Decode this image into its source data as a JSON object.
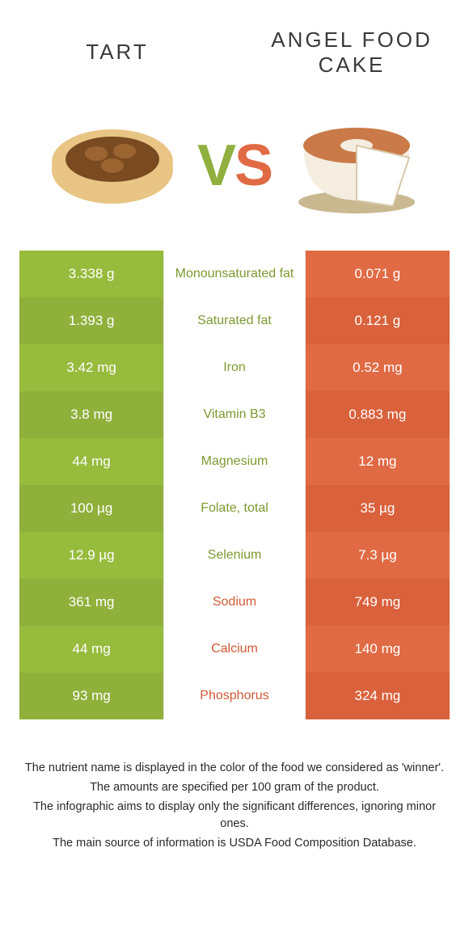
{
  "header": {
    "left_title": "Tart",
    "right_title": "Angel food cake"
  },
  "vs": {
    "v": "V",
    "s": "S"
  },
  "colors": {
    "green_a": "#97bb3d",
    "green_b": "#8fb03a",
    "orange_a": "#e06a44",
    "orange_b": "#d9613c",
    "mid_green_text": "#7d9a30",
    "mid_orange_text": "#d15a36"
  },
  "rows": [
    {
      "label": "Monounsaturated fat",
      "left": "3.338 g",
      "right": "0.071 g",
      "winner": "left"
    },
    {
      "label": "Saturated fat",
      "left": "1.393 g",
      "right": "0.121 g",
      "winner": "left"
    },
    {
      "label": "Iron",
      "left": "3.42 mg",
      "right": "0.52 mg",
      "winner": "left"
    },
    {
      "label": "Vitamin B3",
      "left": "3.8 mg",
      "right": "0.883 mg",
      "winner": "left"
    },
    {
      "label": "Magnesium",
      "left": "44 mg",
      "right": "12 mg",
      "winner": "left"
    },
    {
      "label": "Folate, total",
      "left": "100 µg",
      "right": "35 µg",
      "winner": "left"
    },
    {
      "label": "Selenium",
      "left": "12.9 µg",
      "right": "7.3 µg",
      "winner": "left"
    },
    {
      "label": "Sodium",
      "left": "361 mg",
      "right": "749 mg",
      "winner": "right"
    },
    {
      "label": "Calcium",
      "left": "44 mg",
      "right": "140 mg",
      "winner": "right"
    },
    {
      "label": "Phosphorus",
      "left": "93 mg",
      "right": "324 mg",
      "winner": "right"
    }
  ],
  "footer": {
    "line1": "The nutrient name is displayed in the color of the food we considered as 'winner'.",
    "line2": "The amounts are specified per 100 gram of the product.",
    "line3": "The infographic aims to display only the significant differences, ignoring minor ones.",
    "line4": "The main source of information is USDA Food Composition Database."
  }
}
